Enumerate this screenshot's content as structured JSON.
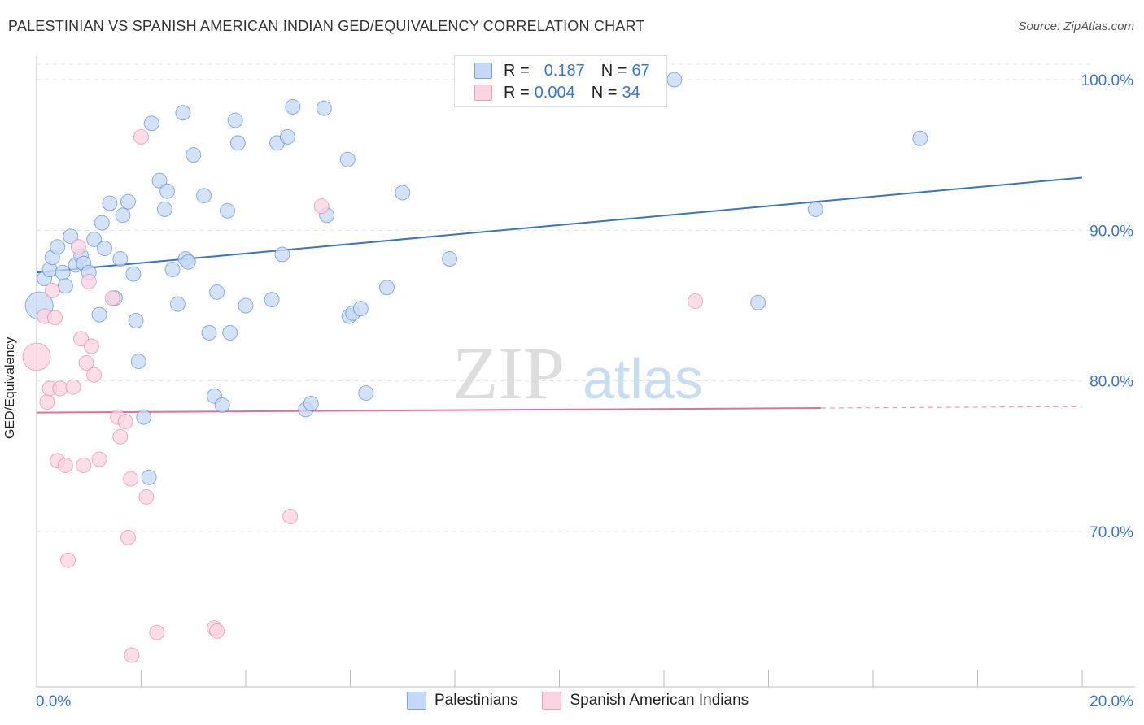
{
  "title": "PALESTINIAN VS SPANISH AMERICAN INDIAN GED/EQUIVALENCY CORRELATION CHART",
  "source": "Source: ZipAtlas.com",
  "watermark": {
    "zip": "ZIP",
    "atlas": "atlas"
  },
  "legend": {
    "r_label": "R =",
    "n_label": "N =",
    "series": [
      {
        "name": "Palestinians",
        "r": "0.187",
        "n": "67",
        "color": "#3a73c8"
      },
      {
        "name": "Spanish American Indians",
        "r": "0.004",
        "n": "34",
        "color": "#e0709a"
      }
    ]
  },
  "chart_data": {
    "type": "scatter",
    "xlabel": "",
    "ylabel": "GED/Equivalency",
    "xlim": [
      0,
      20
    ],
    "ylim": [
      60,
      102
    ],
    "x_tick_labels": [
      "0.0%",
      "20.0%"
    ],
    "y_ticks": [
      70,
      80,
      90,
      100
    ],
    "y_tick_labels": [
      "70.0%",
      "80.0%",
      "90.0%",
      "100.0%"
    ],
    "grid": true,
    "series": [
      {
        "name": "Palestinians",
        "color": "#3a73c8",
        "fill": "#c5d8f5",
        "trend": {
          "x": [
            0,
            20
          ],
          "y": [
            87.2,
            93.5
          ],
          "dashed_from": null
        },
        "points": [
          [
            0.15,
            86.8
          ],
          [
            0.25,
            87.4
          ],
          [
            0.3,
            88.2
          ],
          [
            0.4,
            88.9
          ],
          [
            0.5,
            87.2
          ],
          [
            0.55,
            86.3
          ],
          [
            0.65,
            89.6
          ],
          [
            0.75,
            87.7
          ],
          [
            0.85,
            88.3
          ],
          [
            0.9,
            87.8
          ],
          [
            1.0,
            87.2
          ],
          [
            1.1,
            89.4
          ],
          [
            1.2,
            84.4
          ],
          [
            1.25,
            90.5
          ],
          [
            1.3,
            88.8
          ],
          [
            1.4,
            91.8
          ],
          [
            1.5,
            85.5
          ],
          [
            1.6,
            88.1
          ],
          [
            1.65,
            91.0
          ],
          [
            1.75,
            91.9
          ],
          [
            1.85,
            87.1
          ],
          [
            1.9,
            84.0
          ],
          [
            1.95,
            81.3
          ],
          [
            2.05,
            77.6
          ],
          [
            2.15,
            73.6
          ],
          [
            2.2,
            97.1
          ],
          [
            2.35,
            93.3
          ],
          [
            2.45,
            91.4
          ],
          [
            2.5,
            92.6
          ],
          [
            2.6,
            87.4
          ],
          [
            2.7,
            85.1
          ],
          [
            2.8,
            97.8
          ],
          [
            2.85,
            88.1
          ],
          [
            2.9,
            87.9
          ],
          [
            3.0,
            95.0
          ],
          [
            3.2,
            92.3
          ],
          [
            3.3,
            83.2
          ],
          [
            3.4,
            79.0
          ],
          [
            3.45,
            85.9
          ],
          [
            3.55,
            78.4
          ],
          [
            3.65,
            91.3
          ],
          [
            3.7,
            83.2
          ],
          [
            3.8,
            97.3
          ],
          [
            3.85,
            95.8
          ],
          [
            4.0,
            85.0
          ],
          [
            4.5,
            85.4
          ],
          [
            4.6,
            95.8
          ],
          [
            4.7,
            88.4
          ],
          [
            4.8,
            96.2
          ],
          [
            4.9,
            98.2
          ],
          [
            5.15,
            78.1
          ],
          [
            5.25,
            78.5
          ],
          [
            5.5,
            98.1
          ],
          [
            5.55,
            91.0
          ],
          [
            5.95,
            94.7
          ],
          [
            5.98,
            84.3
          ],
          [
            6.05,
            84.5
          ],
          [
            6.2,
            84.8
          ],
          [
            6.3,
            79.2
          ],
          [
            6.7,
            86.2
          ],
          [
            7.0,
            92.5
          ],
          [
            7.9,
            88.1
          ],
          [
            12.2,
            100.0
          ],
          [
            13.8,
            85.2
          ],
          [
            14.9,
            91.4
          ],
          [
            16.9,
            96.1
          ],
          [
            0.05,
            85.0
          ]
        ]
      },
      {
        "name": "Spanish American Indians",
        "color": "#e0709a",
        "fill": "#fcd3e0",
        "trend": {
          "x": [
            0,
            20
          ],
          "y": [
            77.9,
            78.3
          ],
          "dashed_from": 15.0
        },
        "points": [
          [
            0.0,
            81.6
          ],
          [
            0.15,
            84.3
          ],
          [
            0.2,
            78.6
          ],
          [
            0.25,
            79.5
          ],
          [
            0.3,
            86.0
          ],
          [
            0.35,
            84.2
          ],
          [
            0.4,
            74.7
          ],
          [
            0.45,
            79.5
          ],
          [
            0.55,
            74.4
          ],
          [
            0.6,
            68.1
          ],
          [
            0.7,
            79.6
          ],
          [
            0.8,
            88.9
          ],
          [
            0.85,
            82.8
          ],
          [
            0.9,
            74.4
          ],
          [
            0.95,
            81.2
          ],
          [
            1.05,
            82.3
          ],
          [
            1.0,
            86.6
          ],
          [
            1.1,
            80.4
          ],
          [
            1.2,
            74.8
          ],
          [
            1.45,
            85.5
          ],
          [
            1.55,
            77.6
          ],
          [
            1.6,
            76.3
          ],
          [
            1.7,
            77.3
          ],
          [
            1.75,
            69.6
          ],
          [
            1.8,
            73.5
          ],
          [
            1.82,
            61.8
          ],
          [
            2.0,
            96.2
          ],
          [
            2.1,
            72.3
          ],
          [
            2.3,
            63.3
          ],
          [
            3.4,
            63.6
          ],
          [
            3.45,
            63.4
          ],
          [
            4.85,
            71.0
          ],
          [
            5.45,
            91.6
          ],
          [
            12.6,
            85.3
          ]
        ]
      }
    ]
  }
}
